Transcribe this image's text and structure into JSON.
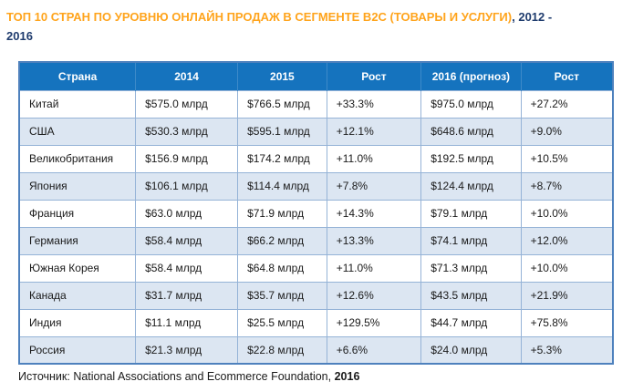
{
  "title": {
    "main": "ТОП 10 СТРАН ПО УРОВНЮ ОНЛАЙН ПРОДАЖ В СЕГМЕНТЕ B2C (ТОВАРЫ И УСЛУГИ)",
    "suffix": ", 2012 - 2016"
  },
  "chart_data": {
    "type": "table",
    "title": "ТОП 10 СТРАН ПО УРОВНЮ ОНЛАЙН ПРОДАЖ В СЕГМЕНТЕ B2C (ТОВАРЫ И УСЛУГИ), 2012 - 2016",
    "columns": [
      "Страна",
      "2014",
      "2015",
      "Рост",
      "2016 (прогноз)",
      "Рост"
    ],
    "rows": [
      [
        "Китай",
        "$575.0 млрд",
        "$766.5 млрд",
        "+33.3%",
        "$975.0 млрд",
        "+27.2%"
      ],
      [
        "США",
        "$530.3 млрд",
        "$595.1 млрд",
        "+12.1%",
        "$648.6 млрд",
        "+9.0%"
      ],
      [
        "Великобритания",
        "$156.9 млрд",
        "$174.2 млрд",
        "+11.0%",
        "$192.5 млрд",
        "+10.5%"
      ],
      [
        "Япония",
        "$106.1 млрд",
        "$114.4 млрд",
        "+7.8%",
        "$124.4 млрд",
        "+8.7%"
      ],
      [
        "Франция",
        "$63.0 млрд",
        "$71.9 млрд",
        "+14.3%",
        "$79.1 млрд",
        "+10.0%"
      ],
      [
        "Германия",
        "$58.4 млрд",
        "$66.2 млрд",
        "+13.3%",
        "$74.1 млрд",
        "+12.0%"
      ],
      [
        "Южная Корея",
        "$58.4 млрд",
        "$64.8 млрд",
        "+11.0%",
        "$71.3 млрд",
        "+10.0%"
      ],
      [
        "Канада",
        "$31.7 млрд",
        "$35.7 млрд",
        "+12.6%",
        "$43.5 млрд",
        "+21.9%"
      ],
      [
        "Индия",
        "$11.1 млрд",
        "$25.5 млрд",
        "+129.5%",
        "$44.7 млрд",
        "+75.8%"
      ],
      [
        "Россия",
        "$21.3 млрд",
        "$22.8 млрд",
        "+6.6%",
        "$24.0 млрд",
        "+5.3%"
      ]
    ],
    "values_unit": "млрд USD",
    "source": "Источник: National Associations and Ecommerce Foundation, 2016"
  },
  "source": {
    "label": "Источник:",
    "text": " National Associations and Ecommerce Foundation, ",
    "year": "2016"
  },
  "colors": {
    "title_orange": "#FFA41C",
    "title_navy": "#1F3C6E",
    "header_bg": "#1573BE",
    "header_text": "#FFFFFF",
    "row_alt_bg": "#DCE6F2",
    "inner_border": "#95B3D7",
    "outer_border": "#4E81BD",
    "cell_text": "#1A1A1A"
  }
}
